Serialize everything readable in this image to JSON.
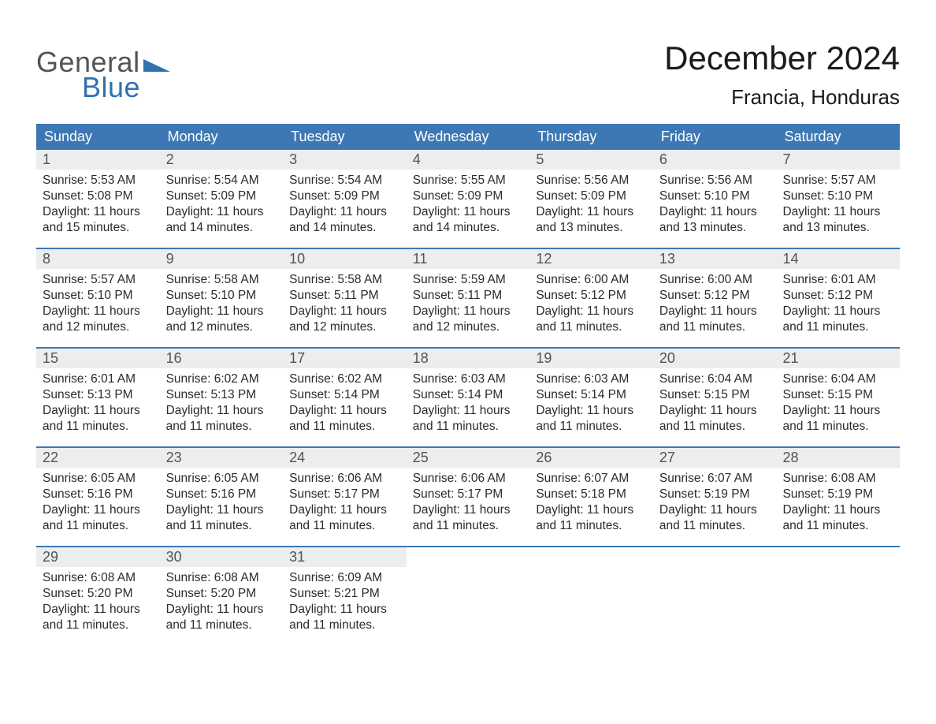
{
  "colors": {
    "header_bg": "#3d78b4",
    "header_text": "#ffffff",
    "daynum_bg": "#eceded",
    "daynum_text": "#525454",
    "row_border": "#3d78b4",
    "body_text": "#333333",
    "logo_gray": "#545454",
    "logo_blue": "#2f72b0",
    "page_bg": "#ffffff"
  },
  "typography": {
    "font_family": "Arial, Helvetica, sans-serif",
    "month_title_size_pt": 32,
    "location_size_pt": 20,
    "weekday_size_pt": 14,
    "daynum_size_pt": 14,
    "body_size_pt": 12
  },
  "logo": {
    "line1": "General",
    "line2": "Blue"
  },
  "title": "December 2024",
  "location": "Francia, Honduras",
  "weekdays": [
    "Sunday",
    "Monday",
    "Tuesday",
    "Wednesday",
    "Thursday",
    "Friday",
    "Saturday"
  ],
  "layout": {
    "columns": 7,
    "rows": 5,
    "first_day_offset": 0
  },
  "labels": {
    "sunrise": "Sunrise",
    "sunset": "Sunset",
    "daylight": "Daylight"
  },
  "days": [
    {
      "n": 1,
      "sunrise": "5:53 AM",
      "sunset": "5:08 PM",
      "daylight_h": 11,
      "daylight_m": 15
    },
    {
      "n": 2,
      "sunrise": "5:54 AM",
      "sunset": "5:09 PM",
      "daylight_h": 11,
      "daylight_m": 14
    },
    {
      "n": 3,
      "sunrise": "5:54 AM",
      "sunset": "5:09 PM",
      "daylight_h": 11,
      "daylight_m": 14
    },
    {
      "n": 4,
      "sunrise": "5:55 AM",
      "sunset": "5:09 PM",
      "daylight_h": 11,
      "daylight_m": 14
    },
    {
      "n": 5,
      "sunrise": "5:56 AM",
      "sunset": "5:09 PM",
      "daylight_h": 11,
      "daylight_m": 13
    },
    {
      "n": 6,
      "sunrise": "5:56 AM",
      "sunset": "5:10 PM",
      "daylight_h": 11,
      "daylight_m": 13
    },
    {
      "n": 7,
      "sunrise": "5:57 AM",
      "sunset": "5:10 PM",
      "daylight_h": 11,
      "daylight_m": 13
    },
    {
      "n": 8,
      "sunrise": "5:57 AM",
      "sunset": "5:10 PM",
      "daylight_h": 11,
      "daylight_m": 12
    },
    {
      "n": 9,
      "sunrise": "5:58 AM",
      "sunset": "5:10 PM",
      "daylight_h": 11,
      "daylight_m": 12
    },
    {
      "n": 10,
      "sunrise": "5:58 AM",
      "sunset": "5:11 PM",
      "daylight_h": 11,
      "daylight_m": 12
    },
    {
      "n": 11,
      "sunrise": "5:59 AM",
      "sunset": "5:11 PM",
      "daylight_h": 11,
      "daylight_m": 12
    },
    {
      "n": 12,
      "sunrise": "6:00 AM",
      "sunset": "5:12 PM",
      "daylight_h": 11,
      "daylight_m": 11
    },
    {
      "n": 13,
      "sunrise": "6:00 AM",
      "sunset": "5:12 PM",
      "daylight_h": 11,
      "daylight_m": 11
    },
    {
      "n": 14,
      "sunrise": "6:01 AM",
      "sunset": "5:12 PM",
      "daylight_h": 11,
      "daylight_m": 11
    },
    {
      "n": 15,
      "sunrise": "6:01 AM",
      "sunset": "5:13 PM",
      "daylight_h": 11,
      "daylight_m": 11
    },
    {
      "n": 16,
      "sunrise": "6:02 AM",
      "sunset": "5:13 PM",
      "daylight_h": 11,
      "daylight_m": 11
    },
    {
      "n": 17,
      "sunrise": "6:02 AM",
      "sunset": "5:14 PM",
      "daylight_h": 11,
      "daylight_m": 11
    },
    {
      "n": 18,
      "sunrise": "6:03 AM",
      "sunset": "5:14 PM",
      "daylight_h": 11,
      "daylight_m": 11
    },
    {
      "n": 19,
      "sunrise": "6:03 AM",
      "sunset": "5:14 PM",
      "daylight_h": 11,
      "daylight_m": 11
    },
    {
      "n": 20,
      "sunrise": "6:04 AM",
      "sunset": "5:15 PM",
      "daylight_h": 11,
      "daylight_m": 11
    },
    {
      "n": 21,
      "sunrise": "6:04 AM",
      "sunset": "5:15 PM",
      "daylight_h": 11,
      "daylight_m": 11
    },
    {
      "n": 22,
      "sunrise": "6:05 AM",
      "sunset": "5:16 PM",
      "daylight_h": 11,
      "daylight_m": 11
    },
    {
      "n": 23,
      "sunrise": "6:05 AM",
      "sunset": "5:16 PM",
      "daylight_h": 11,
      "daylight_m": 11
    },
    {
      "n": 24,
      "sunrise": "6:06 AM",
      "sunset": "5:17 PM",
      "daylight_h": 11,
      "daylight_m": 11
    },
    {
      "n": 25,
      "sunrise": "6:06 AM",
      "sunset": "5:17 PM",
      "daylight_h": 11,
      "daylight_m": 11
    },
    {
      "n": 26,
      "sunrise": "6:07 AM",
      "sunset": "5:18 PM",
      "daylight_h": 11,
      "daylight_m": 11
    },
    {
      "n": 27,
      "sunrise": "6:07 AM",
      "sunset": "5:19 PM",
      "daylight_h": 11,
      "daylight_m": 11
    },
    {
      "n": 28,
      "sunrise": "6:08 AM",
      "sunset": "5:19 PM",
      "daylight_h": 11,
      "daylight_m": 11
    },
    {
      "n": 29,
      "sunrise": "6:08 AM",
      "sunset": "5:20 PM",
      "daylight_h": 11,
      "daylight_m": 11
    },
    {
      "n": 30,
      "sunrise": "6:08 AM",
      "sunset": "5:20 PM",
      "daylight_h": 11,
      "daylight_m": 11
    },
    {
      "n": 31,
      "sunrise": "6:09 AM",
      "sunset": "5:21 PM",
      "daylight_h": 11,
      "daylight_m": 11
    }
  ]
}
